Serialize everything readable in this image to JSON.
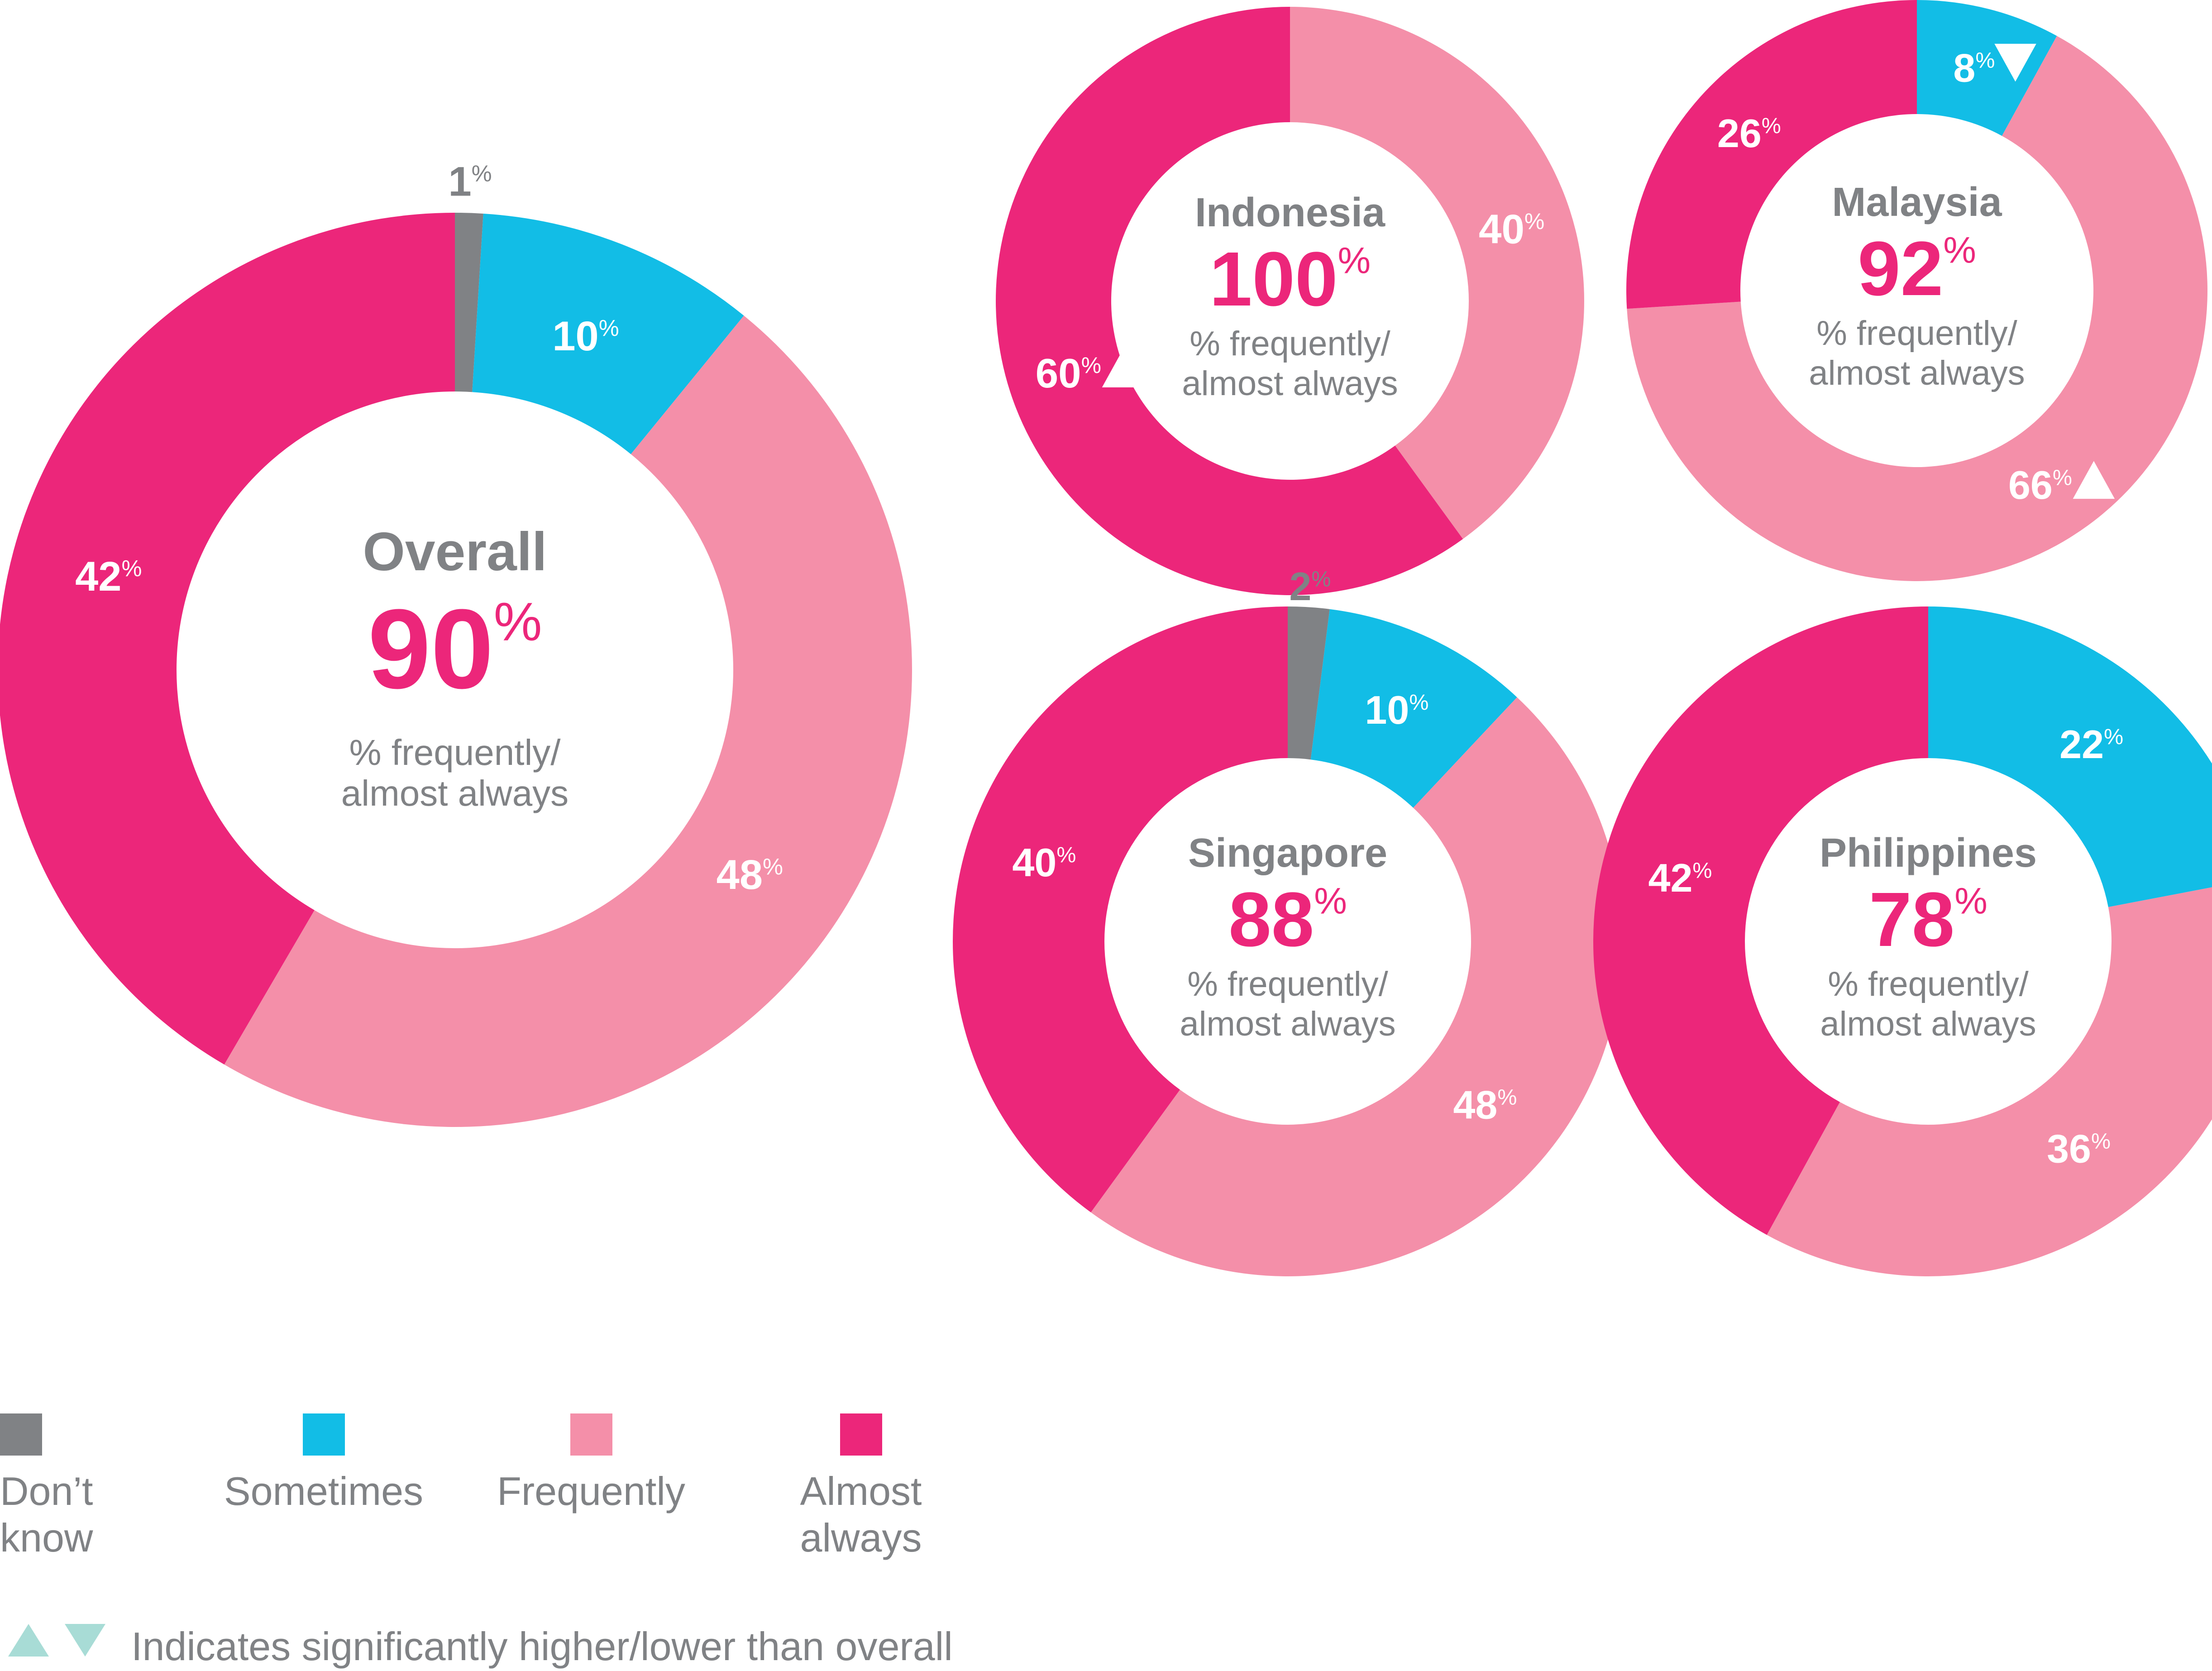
{
  "colors": {
    "dont_know": "#808285",
    "sometimes": "#12BDE6",
    "frequently": "#F48FA9",
    "almost_always": "#EC267A",
    "headline": "#EC267A",
    "grey_text": "#808285",
    "marker": "#A8DCD6"
  },
  "chart_data": {
    "type": "pie",
    "categories": [
      "Don’t know",
      "Sometimes",
      "Frequently",
      "Almost always"
    ],
    "center_subtitle": [
      "% frequently/",
      "almost always"
    ],
    "charts": [
      {
        "id": "overall",
        "title": "Overall",
        "headline": 90,
        "unit": "%",
        "values": [
          1,
          10,
          48,
          42
        ],
        "markers": [
          "",
          "",
          "",
          ""
        ]
      },
      {
        "id": "indonesia",
        "title": "Indonesia",
        "headline": 100,
        "unit": "%",
        "values": [
          0,
          0,
          40,
          60
        ],
        "markers": [
          "",
          "",
          "",
          "up"
        ]
      },
      {
        "id": "malaysia",
        "title": "Malaysia",
        "headline": 92,
        "unit": "%",
        "values": [
          0,
          8,
          66,
          26
        ],
        "markers": [
          "",
          "down",
          "up",
          ""
        ]
      },
      {
        "id": "singapore",
        "title": "Singapore",
        "headline": 88,
        "unit": "%",
        "values": [
          2,
          10,
          48,
          40
        ],
        "markers": [
          "",
          "",
          "",
          ""
        ]
      },
      {
        "id": "philippines",
        "title": "Philippines",
        "headline": 78,
        "unit": "%",
        "values": [
          0,
          22,
          36,
          42
        ],
        "markers": [
          "",
          "",
          "",
          ""
        ]
      }
    ]
  },
  "legend": {
    "items": [
      {
        "lines": [
          "Don’t",
          "know"
        ],
        "color_key": "dont_know"
      },
      {
        "lines": [
          "Sometimes"
        ],
        "color_key": "sometimes"
      },
      {
        "lines": [
          "Frequently"
        ],
        "color_key": "frequently"
      },
      {
        "lines": [
          "Almost",
          "always"
        ],
        "color_key": "almost_always"
      }
    ],
    "significance_note": "Indicates significantly higher/lower than overall"
  }
}
